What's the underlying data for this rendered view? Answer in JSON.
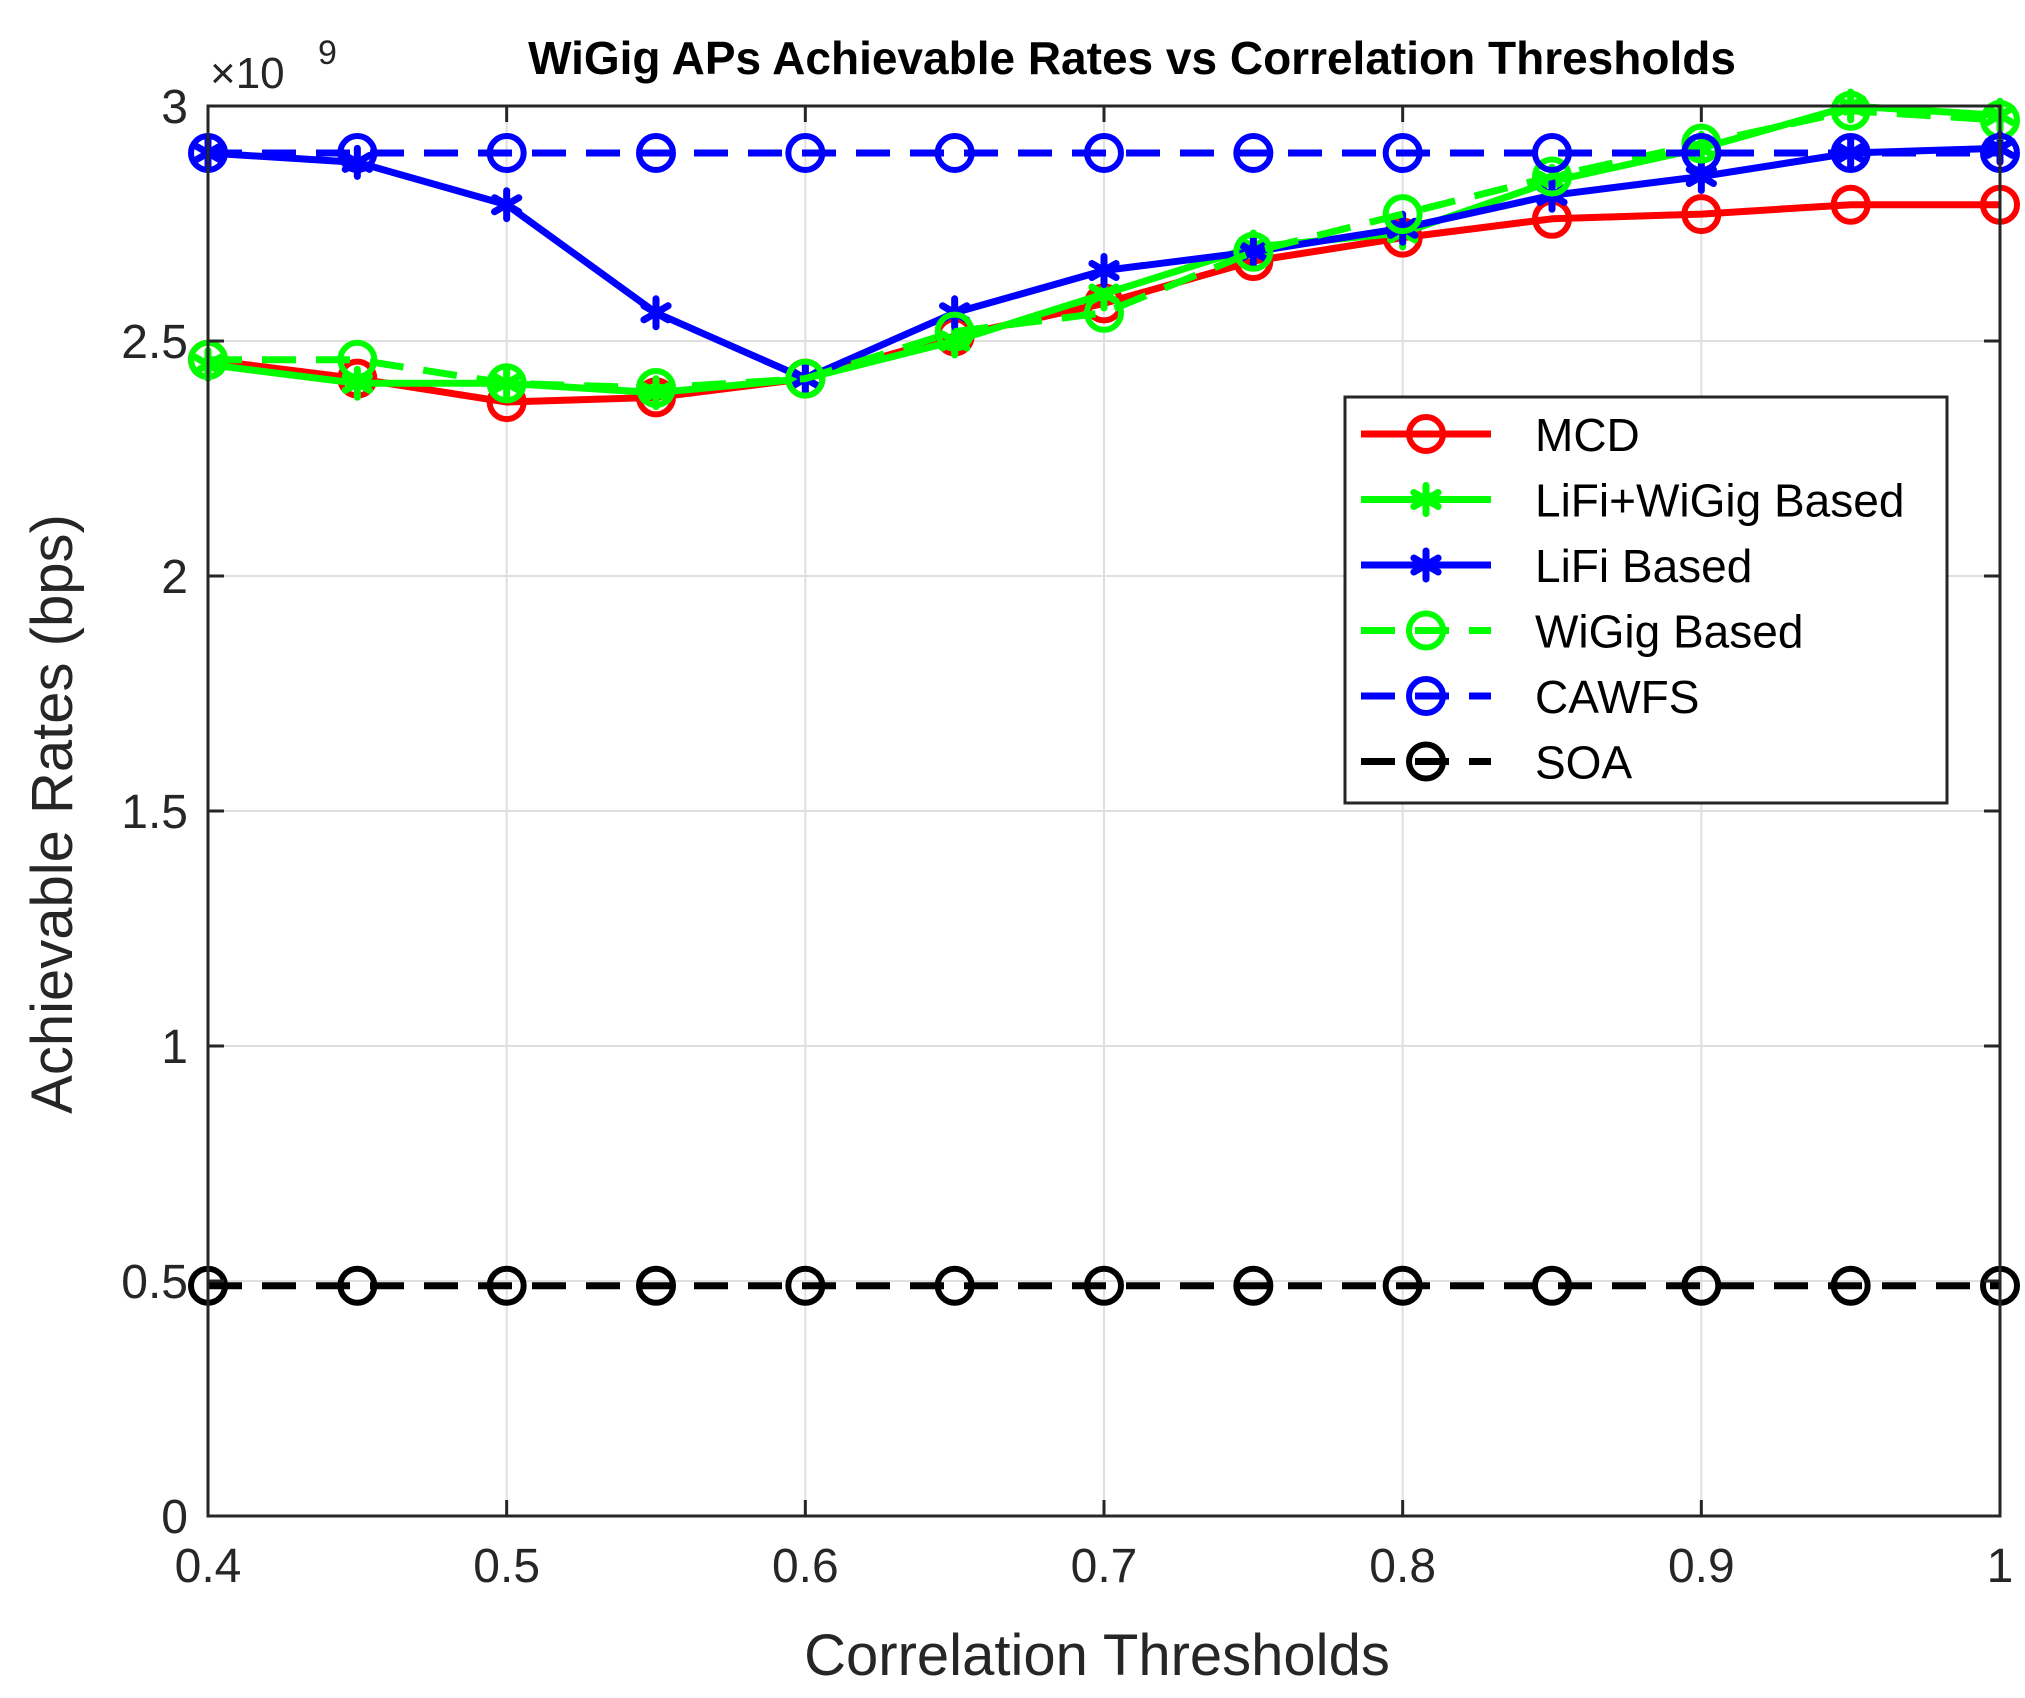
{
  "chart_data": {
    "type": "line",
    "title": "WiGig APs Achievable Rates vs Correlation Thresholds",
    "xlabel": "Correlation Thresholds",
    "ylabel": "Achievable Rates (bps)",
    "y_multiplier_base": "×10",
    "y_multiplier_exp": "9",
    "xlim": [
      0.4,
      1.0
    ],
    "ylim": [
      0,
      3
    ],
    "xticks": [
      0.4,
      0.5,
      0.6,
      0.7,
      0.8,
      0.9,
      1.0
    ],
    "xtick_labels": [
      "0.4",
      "0.5",
      "0.6",
      "0.7",
      "0.8",
      "0.9",
      "1"
    ],
    "yticks": [
      0,
      0.5,
      1,
      1.5,
      2,
      2.5,
      3
    ],
    "ytick_labels": [
      "0",
      "0.5",
      "1",
      "1.5",
      "2",
      "2.5",
      "3"
    ],
    "grid": true,
    "legend_position": "top-right",
    "x": [
      0.4,
      0.45,
      0.5,
      0.55,
      0.6,
      0.65,
      0.7,
      0.75,
      0.8,
      0.85,
      0.9,
      0.95,
      1.0
    ],
    "series": [
      {
        "name": "MCD",
        "color": "#ff0000",
        "dash": "solid",
        "marker": "circle",
        "values": [
          2.46,
          2.42,
          2.37,
          2.38,
          2.42,
          2.51,
          2.58,
          2.67,
          2.72,
          2.76,
          2.77,
          2.79,
          2.79
        ]
      },
      {
        "name": "LiFi+WiGig Based",
        "color": "#00ff00",
        "dash": "solid",
        "marker": "asterisk",
        "values": [
          2.45,
          2.41,
          2.41,
          2.39,
          2.42,
          2.5,
          2.6,
          2.7,
          2.73,
          2.84,
          2.91,
          3.0,
          2.98
        ]
      },
      {
        "name": "LiFi Based",
        "color": "#0000ff",
        "dash": "solid",
        "marker": "asterisk",
        "values": [
          2.9,
          2.88,
          2.79,
          2.56,
          2.42,
          2.56,
          2.65,
          2.69,
          2.74,
          2.81,
          2.85,
          2.9,
          2.91
        ]
      },
      {
        "name": "WiGig Based",
        "color": "#00ff00",
        "dash": "dashed",
        "marker": "circle",
        "values": [
          2.46,
          2.46,
          2.41,
          2.4,
          2.42,
          2.52,
          2.56,
          2.69,
          2.77,
          2.85,
          2.92,
          2.99,
          2.97
        ]
      },
      {
        "name": "CAWFS",
        "color": "#0000ff",
        "dash": "dashed",
        "marker": "circle",
        "values": [
          2.9,
          2.9,
          2.9,
          2.9,
          2.9,
          2.9,
          2.9,
          2.9,
          2.9,
          2.9,
          2.9,
          2.9,
          2.9
        ]
      },
      {
        "name": "SOA",
        "color": "#000000",
        "dash": "dashed",
        "marker": "circle",
        "values": [
          0.49,
          0.49,
          0.49,
          0.49,
          0.49,
          0.49,
          0.49,
          0.49,
          0.49,
          0.49,
          0.49,
          0.49,
          0.49
        ]
      }
    ]
  }
}
